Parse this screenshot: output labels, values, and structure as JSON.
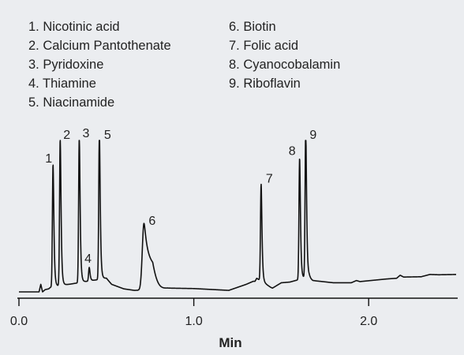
{
  "chart_data": {
    "type": "line",
    "title": "",
    "xlabel": "Min",
    "ylabel": "",
    "xlim": [
      0.0,
      2.5
    ],
    "ylim": [
      0,
      1
    ],
    "grid": false,
    "x_ticks": [
      {
        "value": 0.0,
        "label": "0.0"
      },
      {
        "value": 1.0,
        "label": "1.0"
      },
      {
        "value": 2.0,
        "label": "2.0"
      }
    ],
    "legend": {
      "placement": "top",
      "entries": [
        "1. Nicotinic acid",
        "2. Calcium Pantothenate",
        "3. Pyridoxine",
        "4. Thiamine",
        "5. Niacinamide",
        "6. Biotin",
        "7. Folic acid",
        "8. Cyanocobalamin",
        "9. Riboflavin"
      ]
    },
    "peaks": [
      {
        "label": "1",
        "x": 0.195,
        "height": 0.81
      },
      {
        "label": "2",
        "x": 0.236,
        "height": 0.97
      },
      {
        "label": "3",
        "x": 0.345,
        "height": 0.97
      },
      {
        "label": "4",
        "x": 0.402,
        "height": 0.09
      },
      {
        "label": "5",
        "x": 0.46,
        "height": 0.98
      },
      {
        "label": "6",
        "x": 0.715,
        "height": 0.44
      },
      {
        "label": "7",
        "x": 1.385,
        "height": 0.64
      },
      {
        "label": "8",
        "x": 1.605,
        "height": 0.8
      },
      {
        "label": "9",
        "x": 1.64,
        "height": 0.99
      }
    ],
    "series": [
      {
        "x": [
          0.0,
          0.1,
          0.115,
          0.125,
          0.135,
          0.15,
          0.17,
          0.18,
          0.5,
          0.53,
          0.6,
          0.66,
          0.77,
          0.85,
          1.0,
          1.2,
          1.3,
          1.34,
          1.35,
          1.36,
          1.44,
          1.45,
          1.46,
          1.5,
          1.55,
          1.66,
          1.67,
          1.68,
          1.8,
          1.9,
          1.92,
          1.93,
          1.95,
          2.1,
          2.16,
          2.18,
          2.2,
          2.3,
          2.35,
          2.4,
          2.5
        ],
        "y": [
          0.0,
          0.0,
          0.0,
          0.05,
          0.0,
          0.015,
          0.02,
          0.03,
          0.09,
          0.05,
          0.02,
          0.01,
          0.015,
          0.025,
          0.022,
          0.01,
          0.05,
          0.07,
          0.07,
          0.09,
          0.03,
          0.025,
          0.032,
          0.06,
          0.065,
          0.1,
          0.085,
          0.075,
          0.06,
          0.06,
          0.07,
          0.075,
          0.068,
          0.085,
          0.09,
          0.11,
          0.098,
          0.1,
          0.115,
          0.113,
          0.115
        ]
      }
    ]
  }
}
